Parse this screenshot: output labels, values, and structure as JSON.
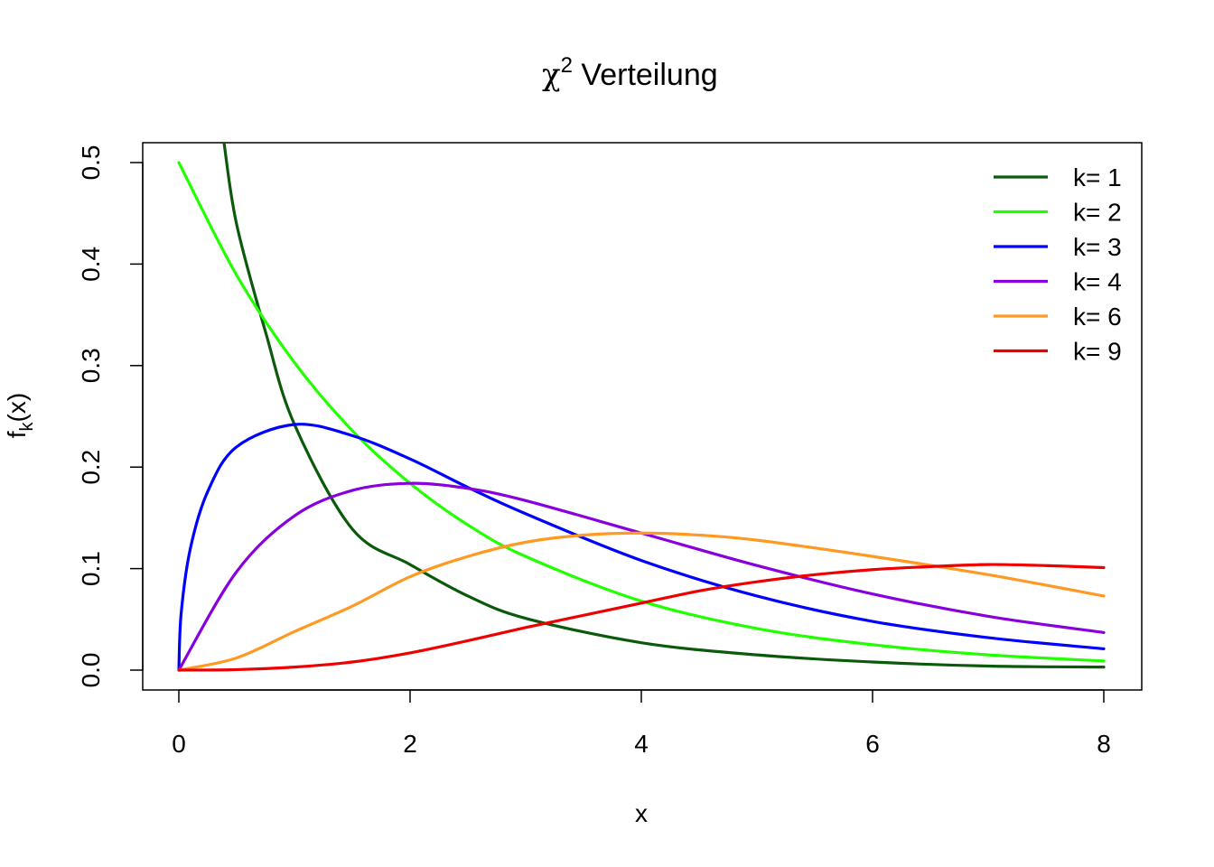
{
  "chart_data": {
    "type": "line",
    "title": "χ",
    "title_superscript": "2",
    "title_rest": " Verteilung",
    "xlabel": "x",
    "ylabel_main": "f",
    "ylabel_sub": "k",
    "ylabel_rest": "(x)",
    "xlim": [
      0,
      8
    ],
    "ylim": [
      0,
      0.5
    ],
    "x_ticks": [
      0,
      2,
      4,
      6,
      8
    ],
    "x_tick_labels": [
      "0",
      "2",
      "4",
      "6",
      "8"
    ],
    "y_ticks": [
      0,
      0.1,
      0.2,
      0.3,
      0.4,
      0.5
    ],
    "y_tick_labels": [
      "0.0",
      "0.1",
      "0.2",
      "0.3",
      "0.4",
      "0.5"
    ],
    "grid": false,
    "legend_position": "top-right",
    "series": [
      {
        "name": "k= 1",
        "k": 1,
        "color": "#0b5a0b",
        "x": [
          0.39,
          0.5,
          0.75,
          1,
          1.5,
          2,
          2.5,
          3,
          4,
          5,
          6,
          7,
          8
        ],
        "y": [
          0.52,
          0.439,
          0.333,
          0.242,
          0.139,
          0.104,
          0.073,
          0.051,
          0.027,
          0.015,
          0.008,
          0.004,
          0.003
        ]
      },
      {
        "name": "k= 2",
        "k": 2,
        "color": "#22ff00",
        "x": [
          0,
          0.5,
          1,
          1.5,
          2,
          2.5,
          3,
          4,
          5,
          6,
          7,
          8
        ],
        "y": [
          0.5,
          0.389,
          0.303,
          0.236,
          0.184,
          0.143,
          0.112,
          0.068,
          0.041,
          0.025,
          0.015,
          0.009
        ]
      },
      {
        "name": "k= 3",
        "k": 3,
        "color": "#0000ff",
        "x": [
          0,
          0.02,
          0.1,
          0.25,
          0.5,
          1,
          1.5,
          2,
          2.5,
          3,
          4,
          5,
          6,
          7,
          8
        ],
        "y": [
          0,
          0.056,
          0.12,
          0.176,
          0.22,
          0.242,
          0.231,
          0.208,
          0.18,
          0.154,
          0.108,
          0.073,
          0.048,
          0.032,
          0.021
        ]
      },
      {
        "name": "k= 4",
        "k": 4,
        "color": "#8800dd",
        "x": [
          0,
          0.5,
          1,
          1.5,
          2,
          2.5,
          3,
          4,
          5,
          6,
          7,
          8
        ],
        "y": [
          0,
          0.097,
          0.152,
          0.177,
          0.184,
          0.179,
          0.167,
          0.135,
          0.103,
          0.075,
          0.053,
          0.037
        ]
      },
      {
        "name": "k= 6",
        "k": 6,
        "color": "#ff9922",
        "x": [
          0,
          0.5,
          1,
          1.5,
          2,
          2.5,
          3,
          3.5,
          4,
          4.5,
          5,
          6,
          7,
          8
        ],
        "y": [
          0,
          0.012,
          0.038,
          0.063,
          0.092,
          0.112,
          0.126,
          0.133,
          0.135,
          0.133,
          0.128,
          0.112,
          0.094,
          0.073
        ]
      },
      {
        "name": "k= 9",
        "k": 9,
        "color": "#ee0000",
        "x": [
          0,
          0.5,
          1,
          1.5,
          2,
          2.5,
          3,
          3.5,
          4,
          4.5,
          5,
          5.5,
          6,
          6.5,
          7,
          7.5,
          8
        ],
        "y": [
          0,
          0.0005,
          0.003,
          0.008,
          0.017,
          0.029,
          0.042,
          0.054,
          0.066,
          0.078,
          0.087,
          0.094,
          0.099,
          0.102,
          0.104,
          0.103,
          0.101
        ]
      }
    ]
  }
}
